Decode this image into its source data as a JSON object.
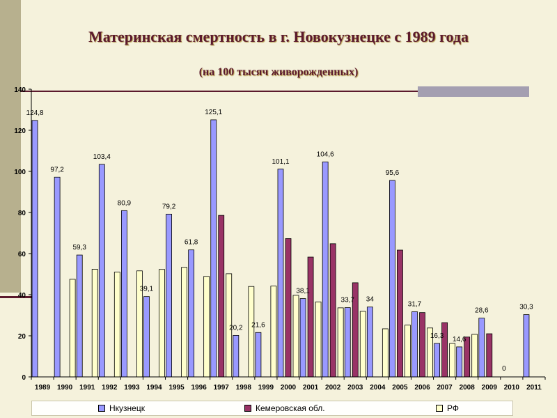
{
  "title": "Материнская смертность в г. Новокузнецке с 1989 года",
  "subtitle": "(на 100 тысяч живорожденных)",
  "chart_data": {
    "type": "bar",
    "categories": [
      "1989",
      "1990",
      "1991",
      "1992",
      "1993",
      "1994",
      "1995",
      "1996",
      "1997",
      "1998",
      "1999",
      "2000",
      "2001",
      "2002",
      "2003",
      "2004",
      "2005",
      "2006",
      "2007",
      "2008",
      "2009",
      "2010",
      "2011"
    ],
    "ylim": [
      0,
      140
    ],
    "yticks": [
      0,
      20,
      40,
      60,
      80,
      100,
      120,
      140
    ],
    "grid": false,
    "legend_position": "bottom",
    "series": [
      {
        "name": "Нкузнецк",
        "color": "#9999ff",
        "values": [
          124.8,
          97.2,
          59.3,
          103.4,
          80.9,
          39.1,
          79.2,
          61.8,
          125.1,
          20.2,
          21.6,
          101.1,
          38.1,
          104.6,
          33.7,
          34,
          95.6,
          31.7,
          16.3,
          14.6,
          28.6,
          0,
          30.3
        ],
        "labels": [
          "124,8",
          "97,2",
          "59,3",
          "103,4",
          "80,9",
          "39,1",
          "79,2",
          "61,8",
          "125,1",
          "20,2",
          "21,6",
          "101,1",
          "38,1",
          "104,6",
          "33,7",
          "34",
          "95,6",
          "31,7",
          "16,3",
          "14,6",
          "28,6",
          "0",
          "30,3"
        ]
      },
      {
        "name": "Кемеровская обл.",
        "color": "#993366",
        "values": [
          null,
          null,
          null,
          null,
          null,
          null,
          null,
          null,
          78.6,
          null,
          null,
          67.3,
          58.3,
          64.8,
          45.8,
          null,
          61.7,
          31.3,
          26.4,
          19.4,
          21.0,
          null,
          null
        ]
      },
      {
        "name": "РФ",
        "color": "#ffffcc",
        "values": [
          null,
          47.5,
          52.4,
          51.0,
          51.6,
          52.3,
          53.3,
          48.9,
          50.2,
          44.0,
          44.2,
          39.7,
          36.5,
          33.6,
          31.9,
          23.4,
          25.2,
          23.8,
          16.3,
          20.7,
          null,
          null,
          null
        ]
      }
    ]
  }
}
